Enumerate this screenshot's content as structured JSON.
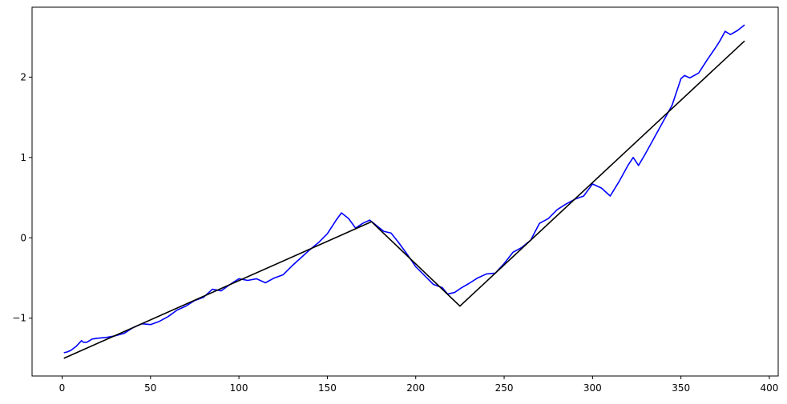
{
  "chart_data": {
    "type": "line",
    "title": "",
    "xlabel": "",
    "ylabel": "",
    "xlim": [
      -17,
      405
    ],
    "ylim": [
      -1.72,
      2.87
    ],
    "grid": false,
    "x_ticks": [
      0,
      50,
      100,
      150,
      200,
      250,
      300,
      350,
      400
    ],
    "x_tick_labels": [
      "0",
      "50",
      "100",
      "150",
      "200",
      "250",
      "300",
      "350",
      "400"
    ],
    "y_ticks": [
      -1,
      0,
      1,
      2
    ],
    "y_tick_labels": [
      "−1",
      "0",
      "1",
      "2"
    ],
    "series": [
      {
        "color": "#0000ff",
        "x": [
          1,
          3,
          5,
          8,
          11,
          12,
          14,
          17,
          20,
          25,
          30,
          35,
          40,
          45,
          50,
          55,
          60,
          65,
          70,
          75,
          80,
          85,
          90,
          95,
          100,
          105,
          110,
          115,
          120,
          125,
          130,
          135,
          140,
          145,
          150,
          155,
          158,
          162,
          166,
          170,
          174,
          178,
          182,
          186,
          190,
          195,
          200,
          205,
          210,
          215,
          218,
          222,
          226,
          230,
          235,
          240,
          245,
          250,
          255,
          260,
          265,
          270,
          275,
          280,
          285,
          290,
          295,
          300,
          305,
          310,
          315,
          320,
          323,
          326,
          330,
          335,
          340,
          345,
          350,
          352,
          355,
          360,
          365,
          370,
          372,
          375,
          378,
          382,
          386
        ],
        "y": [
          -1.43,
          -1.42,
          -1.4,
          -1.35,
          -1.28,
          -1.3,
          -1.3,
          -1.26,
          -1.25,
          -1.24,
          -1.22,
          -1.19,
          -1.12,
          -1.07,
          -1.08,
          -1.04,
          -0.98,
          -0.9,
          -0.85,
          -0.78,
          -0.74,
          -0.64,
          -0.66,
          -0.58,
          -0.51,
          -0.53,
          -0.51,
          -0.56,
          -0.5,
          -0.46,
          -0.35,
          -0.25,
          -0.15,
          -0.06,
          0.05,
          0.22,
          0.31,
          0.24,
          0.12,
          0.18,
          0.22,
          0.15,
          0.08,
          0.06,
          -0.05,
          -0.2,
          -0.36,
          -0.47,
          -0.58,
          -0.62,
          -0.7,
          -0.68,
          -0.62,
          -0.57,
          -0.5,
          -0.45,
          -0.44,
          -0.32,
          -0.18,
          -0.12,
          -0.03,
          0.18,
          0.24,
          0.35,
          0.42,
          0.48,
          0.52,
          0.67,
          0.62,
          0.52,
          0.7,
          0.9,
          1.0,
          0.9,
          1.05,
          1.25,
          1.45,
          1.65,
          1.98,
          2.02,
          1.99,
          2.05,
          2.22,
          2.38,
          2.45,
          2.57,
          2.53,
          2.58,
          2.65
        ]
      },
      {
        "color": "#000000",
        "x": [
          1,
          175,
          225,
          386
        ],
        "y": [
          -1.5,
          0.2,
          -0.85,
          2.45
        ]
      }
    ]
  }
}
